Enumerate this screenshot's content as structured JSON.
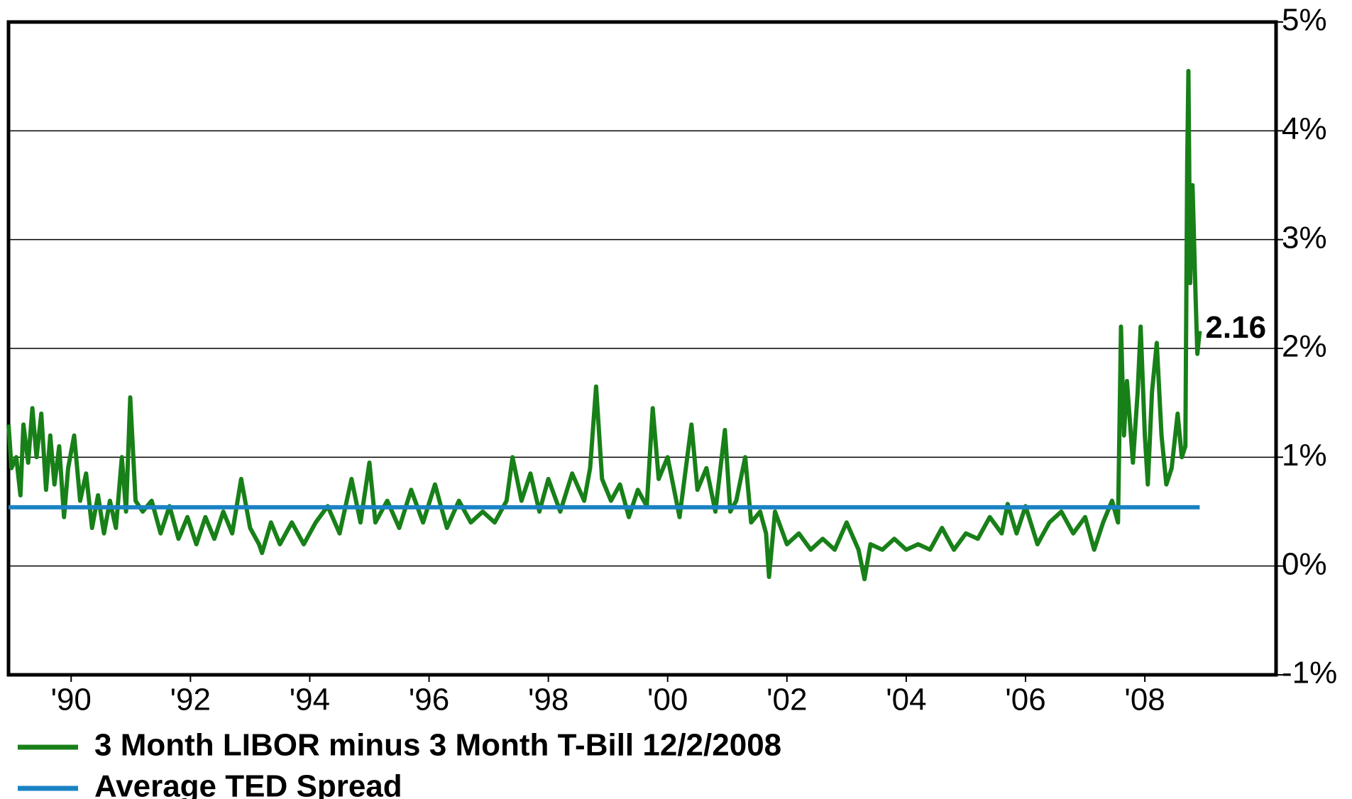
{
  "chart_data": {
    "type": "line",
    "annotation": "2.16",
    "series": [
      {
        "name": "3 Month LIBOR minus 3 Month T-Bill  12/2/2008",
        "color": "#188018",
        "x": [
          1988.95,
          1989.0,
          1989.08,
          1989.15,
          1989.2,
          1989.28,
          1989.35,
          1989.42,
          1989.5,
          1989.58,
          1989.65,
          1989.72,
          1989.8,
          1989.88,
          1989.95,
          1990.05,
          1990.15,
          1990.25,
          1990.35,
          1990.45,
          1990.55,
          1990.65,
          1990.75,
          1990.85,
          1990.92,
          1990.99,
          1991.08,
          1991.2,
          1991.35,
          1991.5,
          1991.65,
          1991.8,
          1991.95,
          1992.1,
          1992.25,
          1992.4,
          1992.55,
          1992.7,
          1992.85,
          1993.0,
          1993.15,
          1993.2,
          1993.35,
          1993.5,
          1993.7,
          1993.9,
          1994.1,
          1994.3,
          1994.5,
          1994.7,
          1994.85,
          1995.0,
          1995.1,
          1995.3,
          1995.5,
          1995.7,
          1995.9,
          1996.1,
          1996.3,
          1996.5,
          1996.7,
          1996.9,
          1997.1,
          1997.3,
          1997.4,
          1997.55,
          1997.7,
          1997.85,
          1998.0,
          1998.2,
          1998.4,
          1998.6,
          1998.7,
          1998.8,
          1998.9,
          1999.05,
          1999.2,
          1999.35,
          1999.5,
          1999.65,
          1999.75,
          1999.85,
          2000.0,
          2000.2,
          2000.4,
          2000.5,
          2000.65,
          2000.8,
          2000.96,
          2001.05,
          2001.15,
          2001.3,
          2001.4,
          2001.55,
          2001.65,
          2001.7,
          2001.8,
          2002.0,
          2002.2,
          2002.4,
          2002.6,
          2002.8,
          2003.0,
          2003.2,
          2003.3,
          2003.4,
          2003.6,
          2003.8,
          2004.0,
          2004.2,
          2004.4,
          2004.6,
          2004.8,
          2005.0,
          2005.2,
          2005.4,
          2005.6,
          2005.7,
          2005.85,
          2006.0,
          2006.2,
          2006.4,
          2006.6,
          2006.8,
          2007.0,
          2007.15,
          2007.3,
          2007.45,
          2007.55,
          2007.6,
          2007.65,
          2007.7,
          2007.8,
          2007.88,
          2007.93,
          2008.0,
          2008.05,
          2008.12,
          2008.2,
          2008.28,
          2008.36,
          2008.45,
          2008.55,
          2008.62,
          2008.68,
          2008.71,
          2008.73,
          2008.76,
          2008.8,
          2008.85,
          2008.88,
          2008.92
        ],
        "values": [
          1.3,
          0.9,
          1.0,
          0.65,
          1.3,
          0.95,
          1.45,
          1.0,
          1.4,
          0.7,
          1.2,
          0.75,
          1.1,
          0.45,
          0.9,
          1.2,
          0.6,
          0.85,
          0.35,
          0.65,
          0.3,
          0.6,
          0.35,
          1.0,
          0.5,
          1.55,
          0.6,
          0.5,
          0.6,
          0.3,
          0.55,
          0.25,
          0.45,
          0.2,
          0.45,
          0.25,
          0.5,
          0.3,
          0.8,
          0.35,
          0.2,
          0.12,
          0.4,
          0.2,
          0.4,
          0.2,
          0.4,
          0.55,
          0.3,
          0.8,
          0.4,
          0.95,
          0.4,
          0.6,
          0.35,
          0.7,
          0.4,
          0.75,
          0.35,
          0.6,
          0.4,
          0.5,
          0.4,
          0.6,
          1.0,
          0.6,
          0.85,
          0.5,
          0.8,
          0.5,
          0.85,
          0.6,
          0.9,
          1.65,
          0.8,
          0.6,
          0.75,
          0.45,
          0.7,
          0.55,
          1.45,
          0.8,
          1.0,
          0.45,
          1.3,
          0.7,
          0.9,
          0.5,
          1.25,
          0.5,
          0.6,
          1.0,
          0.4,
          0.5,
          0.3,
          -0.1,
          0.5,
          0.2,
          0.3,
          0.15,
          0.25,
          0.15,
          0.4,
          0.15,
          -0.12,
          0.2,
          0.15,
          0.25,
          0.15,
          0.2,
          0.15,
          0.35,
          0.15,
          0.3,
          0.25,
          0.45,
          0.3,
          0.57,
          0.3,
          0.55,
          0.2,
          0.4,
          0.5,
          0.3,
          0.45,
          0.15,
          0.4,
          0.6,
          0.4,
          2.2,
          1.2,
          1.7,
          0.95,
          1.6,
          2.2,
          1.2,
          0.75,
          1.6,
          2.05,
          1.2,
          0.75,
          0.9,
          1.4,
          1.0,
          1.1,
          3.7,
          4.55,
          2.6,
          3.5,
          2.5,
          1.95,
          2.16
        ]
      },
      {
        "name": "Average TED Spread",
        "color": "#1a82c4",
        "x": [
          1988.95,
          2008.92
        ],
        "values": [
          0.54,
          0.54
        ]
      }
    ],
    "xlim": [
      1988.95,
      2010.2
    ],
    "xticks": [
      {
        "value": 1990,
        "label": "'90"
      },
      {
        "value": 1992,
        "label": "'92"
      },
      {
        "value": 1994,
        "label": "'94"
      },
      {
        "value": 1996,
        "label": "'96"
      },
      {
        "value": 1998,
        "label": "'98"
      },
      {
        "value": 2000,
        "label": "'00"
      },
      {
        "value": 2002,
        "label": "'02"
      },
      {
        "value": 2004,
        "label": "'04"
      },
      {
        "value": 2006,
        "label": "'06"
      },
      {
        "value": 2008,
        "label": "'08"
      }
    ],
    "ylim": [
      -1,
      5
    ],
    "yticks": [
      {
        "value": -1,
        "label": "-1%"
      },
      {
        "value": 0,
        "label": "0%"
      },
      {
        "value": 1,
        "label": "1%"
      },
      {
        "value": 2,
        "label": "2%"
      },
      {
        "value": 3,
        "label": "3%"
      },
      {
        "value": 4,
        "label": "4%"
      },
      {
        "value": 5,
        "label": "5%"
      }
    ],
    "grid": true,
    "legend": "bottom-left"
  }
}
